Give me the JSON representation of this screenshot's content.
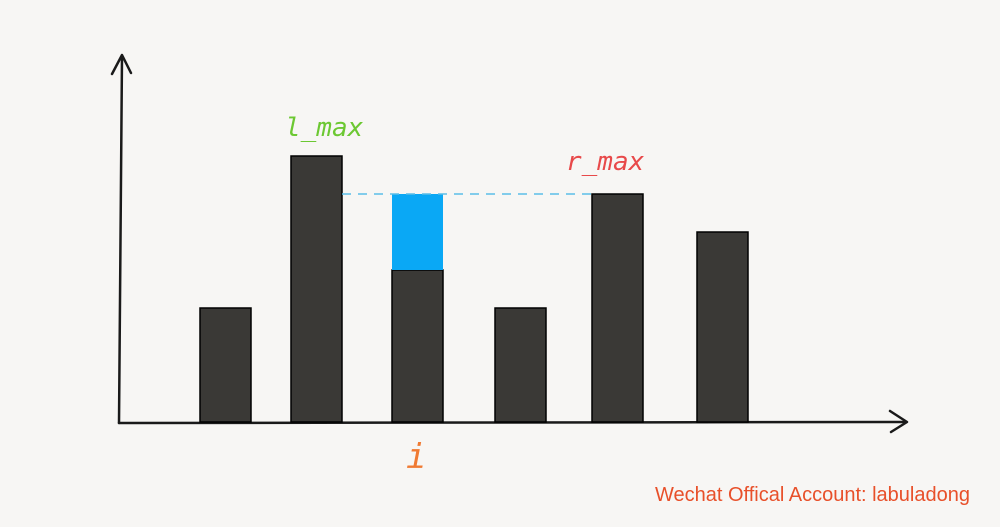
{
  "labels": {
    "l_max": "l_max",
    "r_max": "r_max",
    "i": "i"
  },
  "colors": {
    "bar": "#3a3936",
    "water": "#0aa8f5",
    "dash": "#5bbde8",
    "l_max": "#6cc832",
    "r_max": "#e8494a",
    "i": "#f07a32",
    "axis": "#1a1a1a"
  },
  "chart_data": {
    "type": "bar",
    "values": [
      3,
      7,
      4,
      3,
      6,
      5
    ],
    "water": {
      "bar_index": 2,
      "from": 4,
      "to": 6
    },
    "l_max_index": 1,
    "r_max_index": 4,
    "i_index": 2
  },
  "footer": {
    "watermark": "Wechat Offical Account: labuladong"
  }
}
